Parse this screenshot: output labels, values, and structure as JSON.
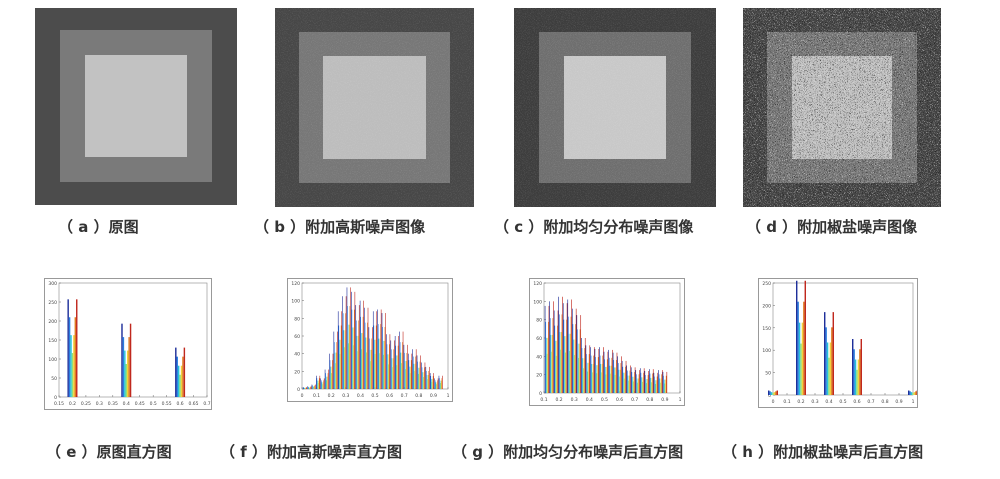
{
  "captions": {
    "a": "（ a ）原图",
    "b": "（ b ）附加高斯噪声图像",
    "c": "（ c ）附加均匀分布噪声图像",
    "d": "（ d ）附加椒盐噪声图像",
    "e": "（ e ）原图直方图",
    "f": "（ f ）附加高斯噪声直方图",
    "g": "（ g ）附加均匀分布噪声后直方图",
    "h": "（ h ）附加椒盐噪声后直方图"
  },
  "chart_data": [
    {
      "type": "bar",
      "id": "e",
      "x": [
        0.2,
        0.4,
        0.6
      ],
      "values": [
        257,
        193,
        130
      ],
      "ylim": [
        0,
        300
      ],
      "yticks": [
        0,
        50,
        100,
        150,
        200,
        250,
        300
      ],
      "xticks": [
        "0.15",
        "0.2",
        "0.25",
        "0.3",
        "0.35",
        "0.4",
        "0.45",
        "0.5",
        "0.55",
        "0.6",
        "0.65",
        "0.7"
      ]
    },
    {
      "type": "bar",
      "id": "f",
      "x": [
        0.02,
        0.05,
        0.08,
        0.11,
        0.14,
        0.17,
        0.2,
        0.23,
        0.26,
        0.29,
        0.32,
        0.35,
        0.38,
        0.41,
        0.44,
        0.47,
        0.5,
        0.53,
        0.56,
        0.59,
        0.62,
        0.65,
        0.68,
        0.71,
        0.74,
        0.77,
        0.8,
        0.83,
        0.86,
        0.89,
        0.92,
        0.95
      ],
      "values": [
        2,
        3,
        5,
        15,
        12,
        22,
        40,
        65,
        88,
        105,
        115,
        110,
        95,
        100,
        92,
        70,
        88,
        90,
        86,
        62,
        55,
        60,
        65,
        50,
        40,
        45,
        38,
        30,
        25,
        18,
        12,
        15
      ],
      "ylim": [
        0,
        120
      ],
      "yticks": [
        0,
        20,
        40,
        60,
        80,
        100,
        120
      ],
      "xticks": [
        "0",
        "0.1",
        "0.2",
        "0.3",
        "0.4",
        "0.5",
        "0.6",
        "0.7",
        "0.8",
        "0.9",
        "1"
      ]
    },
    {
      "type": "bar",
      "id": "g",
      "x": [
        0.12,
        0.15,
        0.18,
        0.21,
        0.24,
        0.27,
        0.3,
        0.33,
        0.36,
        0.39,
        0.42,
        0.45,
        0.48,
        0.51,
        0.54,
        0.57,
        0.6,
        0.63,
        0.66,
        0.69,
        0.72,
        0.75,
        0.78,
        0.81,
        0.84,
        0.87,
        0.9
      ],
      "values": [
        95,
        100,
        90,
        105,
        98,
        102,
        92,
        85,
        60,
        52,
        50,
        48,
        50,
        45,
        47,
        44,
        40,
        35,
        30,
        28,
        25,
        27,
        24,
        26,
        22,
        25,
        23
      ],
      "ylim": [
        0,
        120
      ],
      "yticks": [
        0,
        20,
        40,
        60,
        80,
        100,
        120
      ],
      "xticks": [
        "0.1",
        "0.2",
        "0.3",
        "0.4",
        "0.5",
        "0.6",
        "0.7",
        "0.8",
        "0.9",
        "1"
      ]
    },
    {
      "type": "bar",
      "id": "h",
      "x": [
        0.0,
        0.2,
        0.4,
        0.6,
        1.0
      ],
      "values": [
        10,
        255,
        185,
        125,
        10
      ],
      "ylim": [
        0,
        250
      ],
      "yticks": [
        0,
        50,
        100,
        150,
        200,
        250
      ],
      "xticks": [
        "0",
        "0.1",
        "0.2",
        "0.3",
        "0.4",
        "0.5",
        "0.6",
        "0.7",
        "0.8",
        "0.9",
        "1"
      ]
    }
  ]
}
